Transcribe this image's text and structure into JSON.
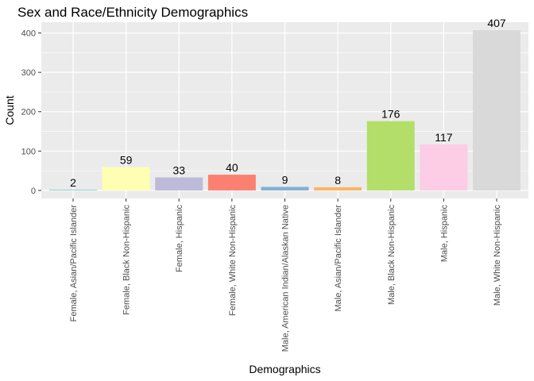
{
  "chart_data": {
    "type": "bar",
    "title": "Sex and Race/Ethnicity Demographics",
    "xlabel": "Demographics",
    "ylabel": "Count",
    "categories": [
      "Female, Asian/Pacific Islander",
      "Female, Black Non-Hispanic",
      "Female, Hispanic",
      "Female, White Non-Hispanic",
      "Male, American Indian/Alaskan Native",
      "Male, Asian/Pacific Islander",
      "Male, Black Non-Hispanic",
      "Male, Hispanic",
      "Male, White Non-Hispanic"
    ],
    "values": [
      2,
      59,
      33,
      40,
      9,
      8,
      176,
      117,
      407
    ],
    "value_labels": [
      "2",
      "59",
      "33",
      "40",
      "9",
      "8",
      "176",
      "117",
      "407"
    ],
    "colors": [
      "#8DD3C7",
      "#FFFFB3",
      "#BEBADA",
      "#FB8072",
      "#80B1D3",
      "#FDB462",
      "#B3DE69",
      "#FCCDE5",
      "#D9D9D9"
    ],
    "ylim": [
      -20.35,
      427.35
    ],
    "yticks": [
      0,
      100,
      200,
      300,
      400
    ],
    "ytick_labels": [
      "0",
      "100",
      "200",
      "300",
      "400"
    ],
    "grid": true,
    "panel_background": "#EBEBEB",
    "legend": "none"
  }
}
